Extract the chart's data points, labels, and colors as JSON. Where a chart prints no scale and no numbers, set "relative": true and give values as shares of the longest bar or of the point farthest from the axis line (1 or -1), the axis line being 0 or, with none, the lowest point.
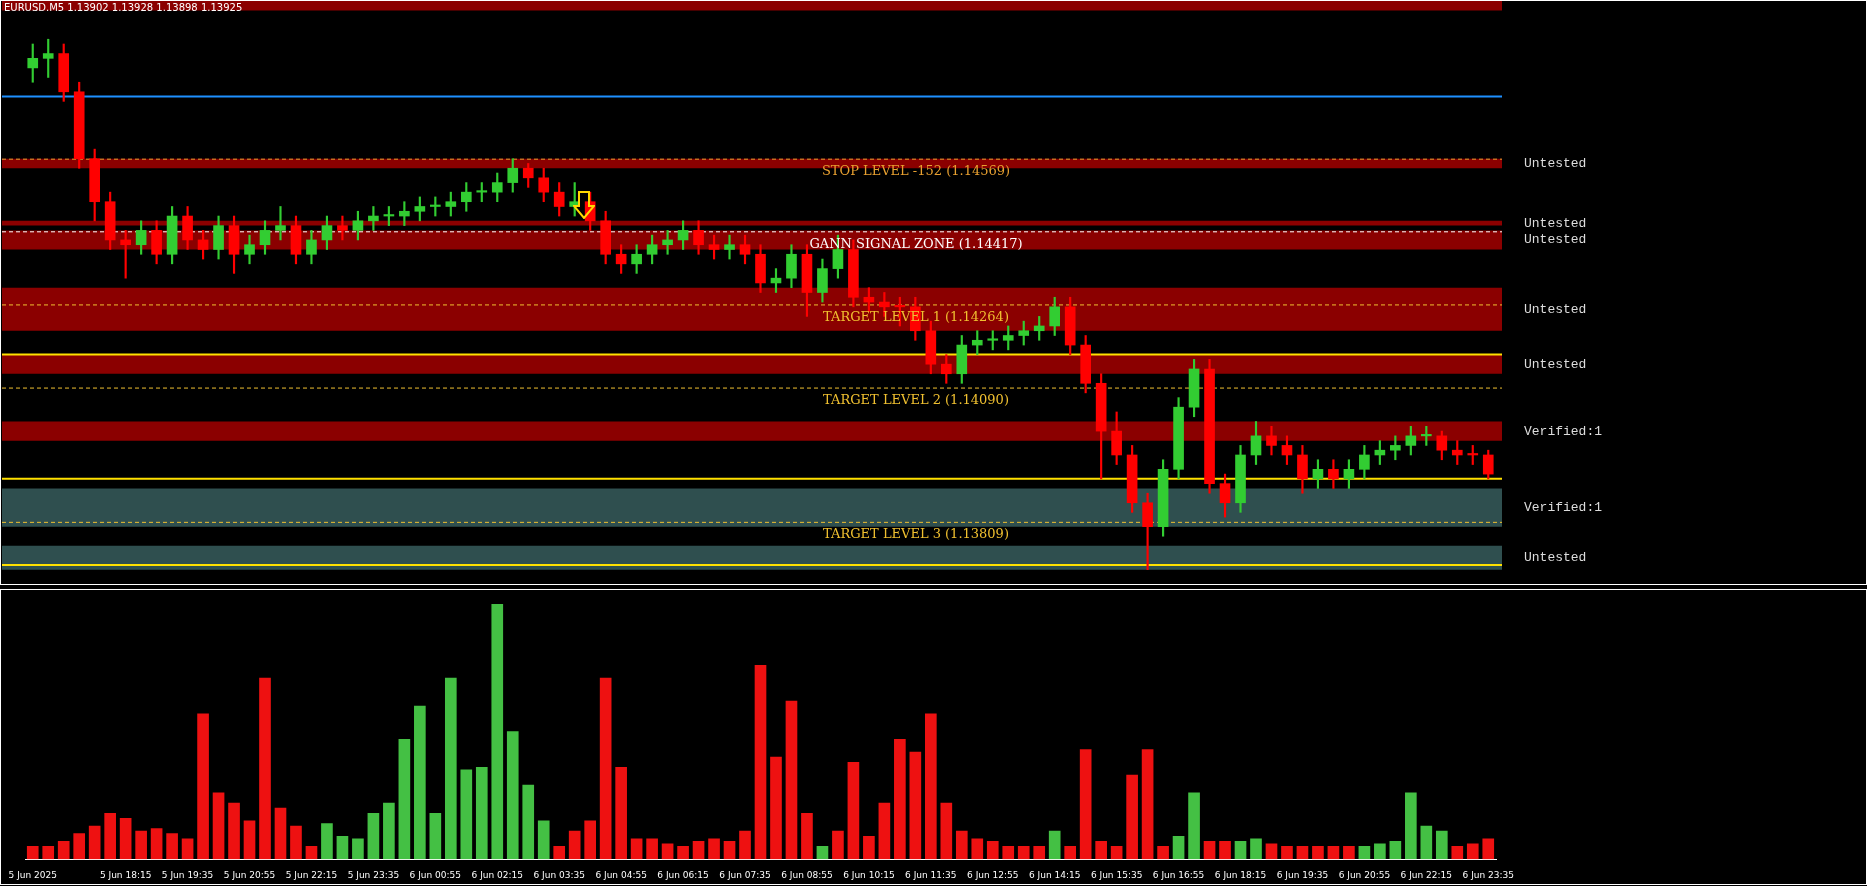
{
  "chart_data": [
    {
      "type": "candlestick",
      "title": "EURUSD.M5  1.13902 1.13928 1.13898 1.13925",
      "tick_labels": false,
      "ylim": [
        1.1368,
        1.149
      ],
      "categories": [
        null,
        null,
        null,
        null,
        null,
        null,
        null,
        null,
        null,
        null,
        null,
        null,
        null,
        null,
        null,
        null,
        null,
        null,
        null,
        null,
        null,
        null,
        null,
        null,
        null,
        null,
        null,
        null,
        null,
        null,
        null,
        null,
        null,
        null,
        null,
        null,
        null,
        null,
        null,
        null,
        null,
        null,
        null,
        null,
        null,
        null,
        null,
        null,
        null,
        null,
        null,
        null,
        null,
        null,
        null,
        null,
        null,
        null,
        null,
        null,
        null,
        null,
        null,
        null,
        null,
        null,
        null,
        null,
        null,
        null,
        null,
        null,
        null,
        null,
        null,
        null,
        null,
        null,
        null,
        null,
        null,
        null,
        null,
        null,
        null,
        null,
        null,
        null,
        null,
        null,
        null,
        null,
        null,
        null,
        null
      ],
      "ohlc": [
        [
          1.1476,
          1.1481,
          1.1473,
          1.1478
        ],
        [
          1.1478,
          1.1482,
          1.1474,
          1.1479
        ],
        [
          1.1479,
          1.1481,
          1.1469,
          1.1471
        ],
        [
          1.1471,
          1.1473,
          1.1455,
          1.1457
        ],
        [
          1.1457,
          1.1459,
          1.1444,
          1.1448
        ],
        [
          1.1448,
          1.145,
          1.1438,
          1.144
        ],
        [
          1.144,
          1.1442,
          1.1432,
          1.1439
        ],
        [
          1.1439,
          1.1444,
          1.1437,
          1.1442
        ],
        [
          1.1442,
          1.1444,
          1.1435,
          1.1437
        ],
        [
          1.1437,
          1.1447,
          1.1435,
          1.1445
        ],
        [
          1.1445,
          1.1447,
          1.1438,
          1.144
        ],
        [
          1.144,
          1.1442,
          1.1436,
          1.1438
        ],
        [
          1.1438,
          1.1445,
          1.1436,
          1.1443
        ],
        [
          1.1443,
          1.1445,
          1.1433,
          1.1437
        ],
        [
          1.1437,
          1.1441,
          1.1435,
          1.1439
        ],
        [
          1.1439,
          1.1444,
          1.1437,
          1.1442
        ],
        [
          1.1442,
          1.1447,
          1.144,
          1.1443
        ],
        [
          1.1443,
          1.1445,
          1.1435,
          1.1437
        ],
        [
          1.1437,
          1.1442,
          1.1435,
          1.144
        ],
        [
          1.144,
          1.1445,
          1.1438,
          1.1443
        ],
        [
          1.1443,
          1.1445,
          1.144,
          1.1442
        ],
        [
          1.1442,
          1.1446,
          1.144,
          1.1444
        ],
        [
          1.1444,
          1.1447,
          1.1442,
          1.1445
        ],
        [
          1.1445,
          1.1447,
          1.1443,
          1.1445
        ],
        [
          1.1445,
          1.1448,
          1.1443,
          1.1446
        ],
        [
          1.1446,
          1.1449,
          1.1444,
          1.1447
        ],
        [
          1.1447,
          1.1449,
          1.1445,
          1.1447
        ],
        [
          1.1447,
          1.145,
          1.1445,
          1.1448
        ],
        [
          1.1448,
          1.1452,
          1.1446,
          1.145
        ],
        [
          1.145,
          1.1452,
          1.1448,
          1.145
        ],
        [
          1.145,
          1.1454,
          1.1448,
          1.1452
        ],
        [
          1.1452,
          1.1457,
          1.145,
          1.1455
        ],
        [
          1.1455,
          1.1456,
          1.1451,
          1.1453
        ],
        [
          1.1453,
          1.1455,
          1.1448,
          1.145
        ],
        [
          1.145,
          1.1452,
          1.1445,
          1.1447
        ],
        [
          1.1447,
          1.1452,
          1.1445,
          1.1448
        ],
        [
          1.1448,
          1.145,
          1.1442,
          1.1444
        ],
        [
          1.1444,
          1.1446,
          1.1435,
          1.1437
        ],
        [
          1.1437,
          1.1439,
          1.1433,
          1.1435
        ],
        [
          1.1435,
          1.1439,
          1.1433,
          1.1437
        ],
        [
          1.1437,
          1.1441,
          1.1435,
          1.1439
        ],
        [
          1.1439,
          1.1442,
          1.1437,
          1.144
        ],
        [
          1.144,
          1.1444,
          1.1438,
          1.1442
        ],
        [
          1.1442,
          1.1444,
          1.1437,
          1.1439
        ],
        [
          1.1439,
          1.1441,
          1.1436,
          1.1438
        ],
        [
          1.1438,
          1.1441,
          1.1436,
          1.1439
        ],
        [
          1.1439,
          1.1441,
          1.1435,
          1.1437
        ],
        [
          1.1437,
          1.1439,
          1.1429,
          1.1431
        ],
        [
          1.1431,
          1.1434,
          1.1429,
          1.1432
        ],
        [
          1.1432,
          1.1439,
          1.143,
          1.1437
        ],
        [
          1.1437,
          1.1439,
          1.1424,
          1.1429
        ],
        [
          1.1429,
          1.1436,
          1.1427,
          1.1434
        ],
        [
          1.1434,
          1.1441,
          1.1432,
          1.1438
        ],
        [
          1.1438,
          1.144,
          1.1426,
          1.1428
        ],
        [
          1.1428,
          1.143,
          1.1425,
          1.1427
        ],
        [
          1.1427,
          1.1429,
          1.1424,
          1.1426
        ],
        [
          1.1426,
          1.1428,
          1.1422,
          1.1426
        ],
        [
          1.1426,
          1.1428,
          1.1419,
          1.1421
        ],
        [
          1.1421,
          1.1423,
          1.1412,
          1.1414
        ],
        [
          1.1414,
          1.1416,
          1.141,
          1.1412
        ],
        [
          1.1412,
          1.142,
          1.141,
          1.1418
        ],
        [
          1.1418,
          1.1421,
          1.1416,
          1.1419
        ],
        [
          1.1419,
          1.1421,
          1.1417,
          1.1419
        ],
        [
          1.1419,
          1.1422,
          1.1417,
          1.142
        ],
        [
          1.142,
          1.1423,
          1.1418,
          1.1421
        ],
        [
          1.1421,
          1.1424,
          1.1419,
          1.1422
        ],
        [
          1.1422,
          1.1428,
          1.142,
          1.1426
        ],
        [
          1.1426,
          1.1428,
          1.1416,
          1.1418
        ],
        [
          1.1418,
          1.142,
          1.1408,
          1.141
        ],
        [
          1.141,
          1.1412,
          1.139,
          1.14
        ],
        [
          1.14,
          1.1404,
          1.1393,
          1.1395
        ],
        [
          1.1395,
          1.1397,
          1.1383,
          1.1385
        ],
        [
          1.1385,
          1.1387,
          1.1371,
          1.138
        ],
        [
          1.138,
          1.1394,
          1.1378,
          1.1392
        ],
        [
          1.1392,
          1.1407,
          1.139,
          1.1405
        ],
        [
          1.1405,
          1.1415,
          1.1403,
          1.1413
        ],
        [
          1.1413,
          1.1415,
          1.1387,
          1.1389
        ],
        [
          1.1389,
          1.1391,
          1.1382,
          1.1385
        ],
        [
          1.1385,
          1.1397,
          1.1383,
          1.1395
        ],
        [
          1.1395,
          1.1402,
          1.1393,
          1.1399
        ],
        [
          1.1399,
          1.1401,
          1.1395,
          1.1397
        ],
        [
          1.1397,
          1.1399,
          1.1393,
          1.1395
        ],
        [
          1.1395,
          1.1397,
          1.1387,
          1.139
        ],
        [
          1.139,
          1.1394,
          1.1388,
          1.1392
        ],
        [
          1.1392,
          1.1394,
          1.1388,
          1.139
        ],
        [
          1.139,
          1.1394,
          1.1388,
          1.1392
        ],
        [
          1.1392,
          1.1397,
          1.139,
          1.1395
        ],
        [
          1.1395,
          1.1398,
          1.1393,
          1.1396
        ],
        [
          1.1396,
          1.1399,
          1.1394,
          1.1397
        ],
        [
          1.1397,
          1.1401,
          1.1395,
          1.1399
        ],
        [
          1.1399,
          1.1401,
          1.1397,
          1.1399
        ],
        [
          1.1399,
          1.14,
          1.1394,
          1.1396
        ],
        [
          1.1396,
          1.1398,
          1.1393,
          1.1395
        ],
        [
          1.1395,
          1.1397,
          1.1393,
          1.1395
        ],
        [
          1.1395,
          1.1396,
          1.139,
          1.1391
        ]
      ],
      "colors": [
        "#32cd32",
        "#32cd32",
        "#ff0000",
        "#ff0000",
        "#ff0000",
        "#ff0000",
        "#ff0000",
        "#32cd32",
        "#ff0000",
        "#32cd32",
        "#ff0000",
        "#ff0000",
        "#32cd32",
        "#ff0000",
        "#32cd32",
        "#32cd32",
        "#32cd32",
        "#ff0000",
        "#32cd32",
        "#32cd32",
        "#ff0000",
        "#32cd32",
        "#32cd32",
        "#32cd32",
        "#32cd32",
        "#32cd32",
        "#32cd32",
        "#32cd32",
        "#32cd32",
        "#32cd32",
        "#32cd32",
        "#32cd32",
        "#ff0000",
        "#ff0000",
        "#ff0000",
        "#32cd32",
        "#ff0000",
        "#ff0000",
        "#ff0000",
        "#32cd32",
        "#32cd32",
        "#32cd32",
        "#32cd32",
        "#ff0000",
        "#ff0000",
        "#32cd32",
        "#ff0000",
        "#ff0000",
        "#32cd32",
        "#32cd32",
        "#ff0000",
        "#32cd32",
        "#32cd32",
        "#ff0000",
        "#ff0000",
        "#ff0000",
        "#ff0000",
        "#ff0000",
        "#ff0000",
        "#ff0000",
        "#32cd32",
        "#32cd32",
        "#32cd32",
        "#32cd32",
        "#32cd32",
        "#32cd32",
        "#32cd32",
        "#ff0000",
        "#ff0000",
        "#ff0000",
        "#ff0000",
        "#ff0000",
        "#ff0000",
        "#32cd32",
        "#32cd32",
        "#32cd32",
        "#ff0000",
        "#ff0000",
        "#32cd32",
        "#32cd32",
        "#ff0000",
        "#ff0000",
        "#ff0000",
        "#32cd32",
        "#ff0000",
        "#32cd32",
        "#32cd32",
        "#32cd32",
        "#32cd32",
        "#32cd32",
        "#32cd32",
        "#ff0000",
        "#ff0000",
        "#ff0000",
        "#ff0000"
      ],
      "bands": [
        {
          "axis": "y",
          "from": 1.1488,
          "to": 1.149,
          "color": "#8b0000"
        },
        {
          "axis": "y",
          "from": 1.1455,
          "to": 1.1457,
          "color": "#8b0000"
        },
        {
          "axis": "y",
          "from": 1.1443,
          "to": 1.1444,
          "color": "#8b0000"
        },
        {
          "axis": "y",
          "from": 1.1438,
          "to": 1.1442,
          "color": "#8b0000"
        },
        {
          "axis": "y",
          "from": 1.1421,
          "to": 1.143,
          "color": "#8b0000"
        },
        {
          "axis": "y",
          "from": 1.1412,
          "to": 1.1416,
          "color": "#8b0000"
        },
        {
          "axis": "y",
          "from": 1.1398,
          "to": 1.1402,
          "color": "#8b0000"
        },
        {
          "axis": "y",
          "from": 1.138,
          "to": 1.1388,
          "color": "#2f4f4f"
        },
        {
          "axis": "y",
          "from": 1.1371,
          "to": 1.1376,
          "color": "#2f4f4f"
        }
      ],
      "ref_lines": [
        {
          "axis": "y",
          "value": 1.147,
          "color": "#1e90ff",
          "line_style": "solid"
        },
        {
          "axis": "y",
          "value": 1.14569,
          "label": "STOP LEVEL -152 (1.14569)",
          "color": "#e8a030",
          "line_style": "dashed"
        },
        {
          "axis": "y",
          "value": 1.14417,
          "label": "GANN SIGNAL ZONE (1.14417)",
          "color": "#ffffff",
          "line_style": "dashed"
        },
        {
          "axis": "y",
          "value": 1.14264,
          "label": "TARGET LEVEL 1 (1.14264)",
          "color": "#f0c030",
          "line_style": "dashed"
        },
        {
          "axis": "y",
          "value": 1.1416,
          "color": "#ffe000",
          "line_style": "solid"
        },
        {
          "axis": "y",
          "value": 1.1409,
          "label": "TARGET LEVEL 2 (1.14090)",
          "color": "#f0c030",
          "line_style": "dashed"
        },
        {
          "axis": "y",
          "value": 1.139,
          "color": "#ffe000",
          "line_style": "solid"
        },
        {
          "axis": "y",
          "value": 1.13809,
          "label": "TARGET LEVEL 3 (1.13809)",
          "color": "#f0c030",
          "line_style": "dashed"
        },
        {
          "axis": "y",
          "value": 1.1372,
          "color": "#ffe000",
          "line_style": "solid"
        }
      ],
      "annotations": [
        "Untested",
        "Untested",
        "Untested",
        "Untested",
        "Untested",
        "Verified:1",
        "Verified:1",
        "Untested"
      ]
    },
    {
      "type": "bar",
      "relative": true,
      "tick_labels": "x",
      "categories": [
        "5 Jun 2025",
        null,
        null,
        null,
        null,
        null,
        "5 Jun 18:15",
        null,
        null,
        null,
        "5 Jun 19:35",
        null,
        null,
        null,
        "5 Jun 20:55",
        null,
        null,
        null,
        "5 Jun 22:15",
        null,
        null,
        null,
        "5 Jun 23:35",
        null,
        null,
        null,
        "6 Jun 00:55",
        null,
        null,
        null,
        "6 Jun 02:15",
        null,
        null,
        null,
        "6 Jun 03:35",
        null,
        null,
        null,
        "6 Jun 04:55",
        null,
        null,
        null,
        "6 Jun 06:15",
        null,
        null,
        null,
        "6 Jun 07:35",
        null,
        null,
        null,
        "6 Jun 08:55",
        null,
        null,
        null,
        "6 Jun 10:15",
        null,
        null,
        null,
        "6 Jun 11:35",
        null,
        null,
        null,
        "6 Jun 12:55",
        null,
        null,
        null,
        "6 Jun 14:15",
        null,
        null,
        null,
        "6 Jun 15:35",
        null,
        null,
        null,
        "6 Jun 16:55",
        null,
        null,
        null,
        "6 Jun 18:15",
        null,
        null,
        null,
        "6 Jun 19:35",
        null,
        null,
        null,
        "6 Jun 20:55",
        null,
        null,
        null,
        "6 Jun 22:15",
        null,
        null,
        null,
        "6 Jun 23:35"
      ],
      "values": [
        0.05,
        0.05,
        0.07,
        0.1,
        0.13,
        0.18,
        0.16,
        0.11,
        0.12,
        0.1,
        0.08,
        0.57,
        0.26,
        0.22,
        0.15,
        0.71,
        0.2,
        0.13,
        0.05,
        0.14,
        0.09,
        0.08,
        0.18,
        0.22,
        0.47,
        0.6,
        0.18,
        0.71,
        0.35,
        0.36,
        1.0,
        0.5,
        0.29,
        0.15,
        0.05,
        0.11,
        0.15,
        0.71,
        0.36,
        0.08,
        0.08,
        0.06,
        0.05,
        0.07,
        0.08,
        0.07,
        0.11,
        0.76,
        0.4,
        0.62,
        0.18,
        0.05,
        0.11,
        0.38,
        0.09,
        0.22,
        0.47,
        0.42,
        0.57,
        0.22,
        0.11,
        0.08,
        0.07,
        0.05,
        0.05,
        0.05,
        0.11,
        0.05,
        0.43,
        0.07,
        0.05,
        0.33,
        0.43,
        0.05,
        0.09,
        0.26,
        0.07,
        0.07,
        0.07,
        0.08,
        0.06,
        0.05,
        0.05,
        0.05,
        0.05,
        0.05,
        0.05,
        0.06,
        0.07,
        0.26,
        0.13,
        0.11,
        0.05,
        0.06,
        0.08
      ],
      "colors": [
        "#ee1111",
        "#ee1111",
        "#ee1111",
        "#ee1111",
        "#ee1111",
        "#ee1111",
        "#ee1111",
        "#ee1111",
        "#ee1111",
        "#ee1111",
        "#ee1111",
        "#ee1111",
        "#ee1111",
        "#ee1111",
        "#ee1111",
        "#ee1111",
        "#ee1111",
        "#ee1111",
        "#ee1111",
        "#44c044",
        "#44c044",
        "#44c044",
        "#44c044",
        "#44c044",
        "#44c044",
        "#44c044",
        "#44c044",
        "#44c044",
        "#44c044",
        "#44c044",
        "#44c044",
        "#44c044",
        "#44c044",
        "#44c044",
        "#ee1111",
        "#ee1111",
        "#ee1111",
        "#ee1111",
        "#ee1111",
        "#ee1111",
        "#ee1111",
        "#ee1111",
        "#ee1111",
        "#ee1111",
        "#ee1111",
        "#ee1111",
        "#ee1111",
        "#ee1111",
        "#ee1111",
        "#ee1111",
        "#ee1111",
        "#44c044",
        "#ee1111",
        "#ee1111",
        "#ee1111",
        "#ee1111",
        "#ee1111",
        "#ee1111",
        "#ee1111",
        "#ee1111",
        "#ee1111",
        "#ee1111",
        "#ee1111",
        "#ee1111",
        "#ee1111",
        "#ee1111",
        "#44c044",
        "#ee1111",
        "#ee1111",
        "#ee1111",
        "#ee1111",
        "#ee1111",
        "#ee1111",
        "#ee1111",
        "#44c044",
        "#44c044",
        "#ee1111",
        "#ee1111",
        "#44c044",
        "#44c044",
        "#ee1111",
        "#ee1111",
        "#ee1111",
        "#ee1111",
        "#ee1111",
        "#ee1111",
        "#44c044",
        "#44c044",
        "#44c044",
        "#44c044",
        "#44c044",
        "#44c044",
        "#ee1111",
        "#ee1111",
        "#ee1111"
      ]
    }
  ]
}
